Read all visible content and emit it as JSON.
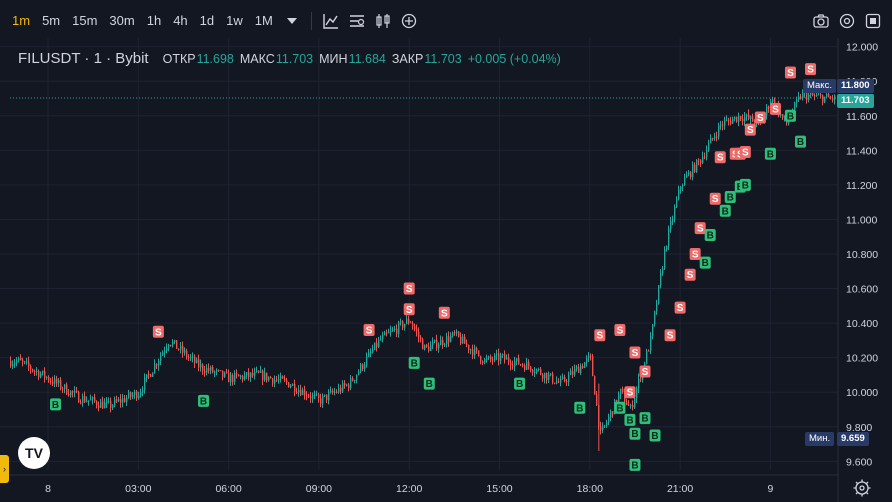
{
  "toolbar": {
    "timeframes": [
      "1m",
      "5m",
      "15m",
      "30m",
      "1h",
      "4h",
      "1d",
      "1w",
      "1M"
    ],
    "active_timeframe": "1m"
  },
  "legend": {
    "symbol": "FILUSDT · 1 · Bybit",
    "open_label": "ОТКР",
    "open": "11.698",
    "high_label": "МАКС",
    "high": "11.703",
    "low_label": "МИН",
    "low": "11.684",
    "close_label": "ЗАКР",
    "close": "11.703",
    "change": "+0.005 (+0.04%)"
  },
  "price_axis": {
    "ticks": [
      "12.000",
      "11.800",
      "11.600",
      "11.400",
      "11.200",
      "11.000",
      "10.800",
      "10.600",
      "10.400",
      "10.200",
      "10.000",
      "9.800",
      "9.600"
    ],
    "max_badge_label": "Макс.",
    "max_value": "11.800",
    "last_value": "11.703",
    "min_badge_label": "Мин.",
    "min_value": "9.659"
  },
  "time_axis": {
    "ticks": [
      "8",
      "03:00",
      "06:00",
      "09:00",
      "12:00",
      "15:00",
      "18:00",
      "21:00",
      "9"
    ]
  },
  "chart_data": {
    "type": "candlestick",
    "symbol": "FILUSDT",
    "interval": "1m",
    "ylim": [
      9.55,
      12.05
    ],
    "series_anchor_points": [
      {
        "t": "7 23:00",
        "price": 10.18
      },
      {
        "t": "8 00:00",
        "price": 10.08
      },
      {
        "t": "8 01:00",
        "price": 9.97
      },
      {
        "t": "8 02:00",
        "price": 9.92
      },
      {
        "t": "8 03:00",
        "price": 10.0
      },
      {
        "t": "8 04:00",
        "price": 10.3
      },
      {
        "t": "8 05:00",
        "price": 10.15
      },
      {
        "t": "8 06:00",
        "price": 10.08
      },
      {
        "t": "8 07:00",
        "price": 10.1
      },
      {
        "t": "8 08:00",
        "price": 10.05
      },
      {
        "t": "8 09:00",
        "price": 9.95
      },
      {
        "t": "8 10:00",
        "price": 10.05
      },
      {
        "t": "8 11:00",
        "price": 10.3
      },
      {
        "t": "8 12:00",
        "price": 10.42
      },
      {
        "t": "8 12:30",
        "price": 10.25
      },
      {
        "t": "8 13:30",
        "price": 10.33
      },
      {
        "t": "8 14:30",
        "price": 10.18
      },
      {
        "t": "8 15:00",
        "price": 10.2
      },
      {
        "t": "8 16:00",
        "price": 10.15
      },
      {
        "t": "8 17:00",
        "price": 10.05
      },
      {
        "t": "8 18:00",
        "price": 10.2
      },
      {
        "t": "8 18:20",
        "price": 9.75
      },
      {
        "t": "8 19:00",
        "price": 10.0
      },
      {
        "t": "8 19:20",
        "price": 9.9
      },
      {
        "t": "8 20:00",
        "price": 10.3
      },
      {
        "t": "8 20:30",
        "price": 10.85
      },
      {
        "t": "8 21:00",
        "price": 11.2
      },
      {
        "t": "8 21:40",
        "price": 11.35
      },
      {
        "t": "8 22:20",
        "price": 11.55
      },
      {
        "t": "8 23:00",
        "price": 11.6
      },
      {
        "t": "8 23:40",
        "price": 11.55
      },
      {
        "t": "9 00:00",
        "price": 11.7
      },
      {
        "t": "9 00:30",
        "price": 11.55
      },
      {
        "t": "9 01:00",
        "price": 11.72
      },
      {
        "t": "9 02:00",
        "price": 11.7
      }
    ],
    "signals": [
      {
        "type": "B",
        "t": "8 00:15",
        "price": 9.93
      },
      {
        "type": "S",
        "t": "8 03:40",
        "price": 10.35
      },
      {
        "type": "B",
        "t": "8 05:10",
        "price": 9.95
      },
      {
        "type": "S",
        "t": "8 10:40",
        "price": 10.36
      },
      {
        "type": "S",
        "t": "8 12:00",
        "price": 10.6
      },
      {
        "type": "S",
        "t": "8 12:00",
        "price": 10.48
      },
      {
        "type": "B",
        "t": "8 12:10",
        "price": 10.17
      },
      {
        "type": "S",
        "t": "8 13:10",
        "price": 10.46
      },
      {
        "type": "B",
        "t": "8 12:40",
        "price": 10.05
      },
      {
        "type": "B",
        "t": "8 15:40",
        "price": 10.05
      },
      {
        "type": "S",
        "t": "8 18:20",
        "price": 10.33
      },
      {
        "type": "B",
        "t": "8 17:40",
        "price": 9.91
      },
      {
        "type": "S",
        "t": "8 19:00",
        "price": 10.36
      },
      {
        "type": "B",
        "t": "8 19:00",
        "price": 9.91
      },
      {
        "type": "S",
        "t": "8 19:30",
        "price": 10.23
      },
      {
        "type": "S",
        "t": "8 19:20",
        "price": 10.0
      },
      {
        "type": "B",
        "t": "8 19:20",
        "price": 9.84
      },
      {
        "type": "B",
        "t": "8 19:30",
        "price": 9.76
      },
      {
        "type": "S",
        "t": "8 19:50",
        "price": 10.12
      },
      {
        "type": "B",
        "t": "8 19:50",
        "price": 9.85
      },
      {
        "type": "B",
        "t": "8 20:10",
        "price": 9.75
      },
      {
        "type": "B",
        "t": "8 19:30",
        "price": 9.58
      },
      {
        "type": "S",
        "t": "8 20:40",
        "price": 10.33
      },
      {
        "type": "S",
        "t": "8 21:00",
        "price": 10.49
      },
      {
        "type": "S",
        "t": "8 21:20",
        "price": 10.68
      },
      {
        "type": "B",
        "t": "8 21:50",
        "price": 10.75
      },
      {
        "type": "S",
        "t": "8 21:30",
        "price": 10.8
      },
      {
        "type": "S",
        "t": "8 21:40",
        "price": 10.95
      },
      {
        "type": "S",
        "t": "8 22:10",
        "price": 11.12
      },
      {
        "type": "B",
        "t": "8 22:00",
        "price": 10.91
      },
      {
        "type": "B",
        "t": "8 22:30",
        "price": 11.05
      },
      {
        "type": "S",
        "t": "8 22:20",
        "price": 11.36
      },
      {
        "type": "B",
        "t": "8 22:40",
        "price": 11.13
      },
      {
        "type": "B",
        "t": "8 23:00",
        "price": 11.19
      },
      {
        "type": "B",
        "t": "8 23:10",
        "price": 11.2
      },
      {
        "type": "S",
        "t": "8 22:50",
        "price": 11.38
      },
      {
        "type": "S",
        "t": "8 23:00",
        "price": 11.38
      },
      {
        "type": "S",
        "t": "8 23:20",
        "price": 11.52
      },
      {
        "type": "S",
        "t": "8 23:10",
        "price": 11.39
      },
      {
        "type": "S",
        "t": "8 23:40",
        "price": 11.59
      },
      {
        "type": "B",
        "t": "9 00:00",
        "price": 11.38
      },
      {
        "type": "S",
        "t": "9 00:10",
        "price": 11.64
      },
      {
        "type": "S",
        "t": "9 00:40",
        "price": 11.85
      },
      {
        "type": "B",
        "t": "9 00:40",
        "price": 11.6
      },
      {
        "type": "B",
        "t": "9 01:00",
        "price": 11.45
      },
      {
        "type": "S",
        "t": "9 01:20",
        "price": 11.87
      }
    ]
  },
  "colors": {
    "background": "#131722",
    "up": "#26a69a",
    "down": "#ef5350",
    "grid": "#1f2230",
    "active_timeframe": "#f0b90b",
    "last_price": "#26a69a",
    "max_min_badge": "#283a66"
  },
  "logo_text": "TV"
}
